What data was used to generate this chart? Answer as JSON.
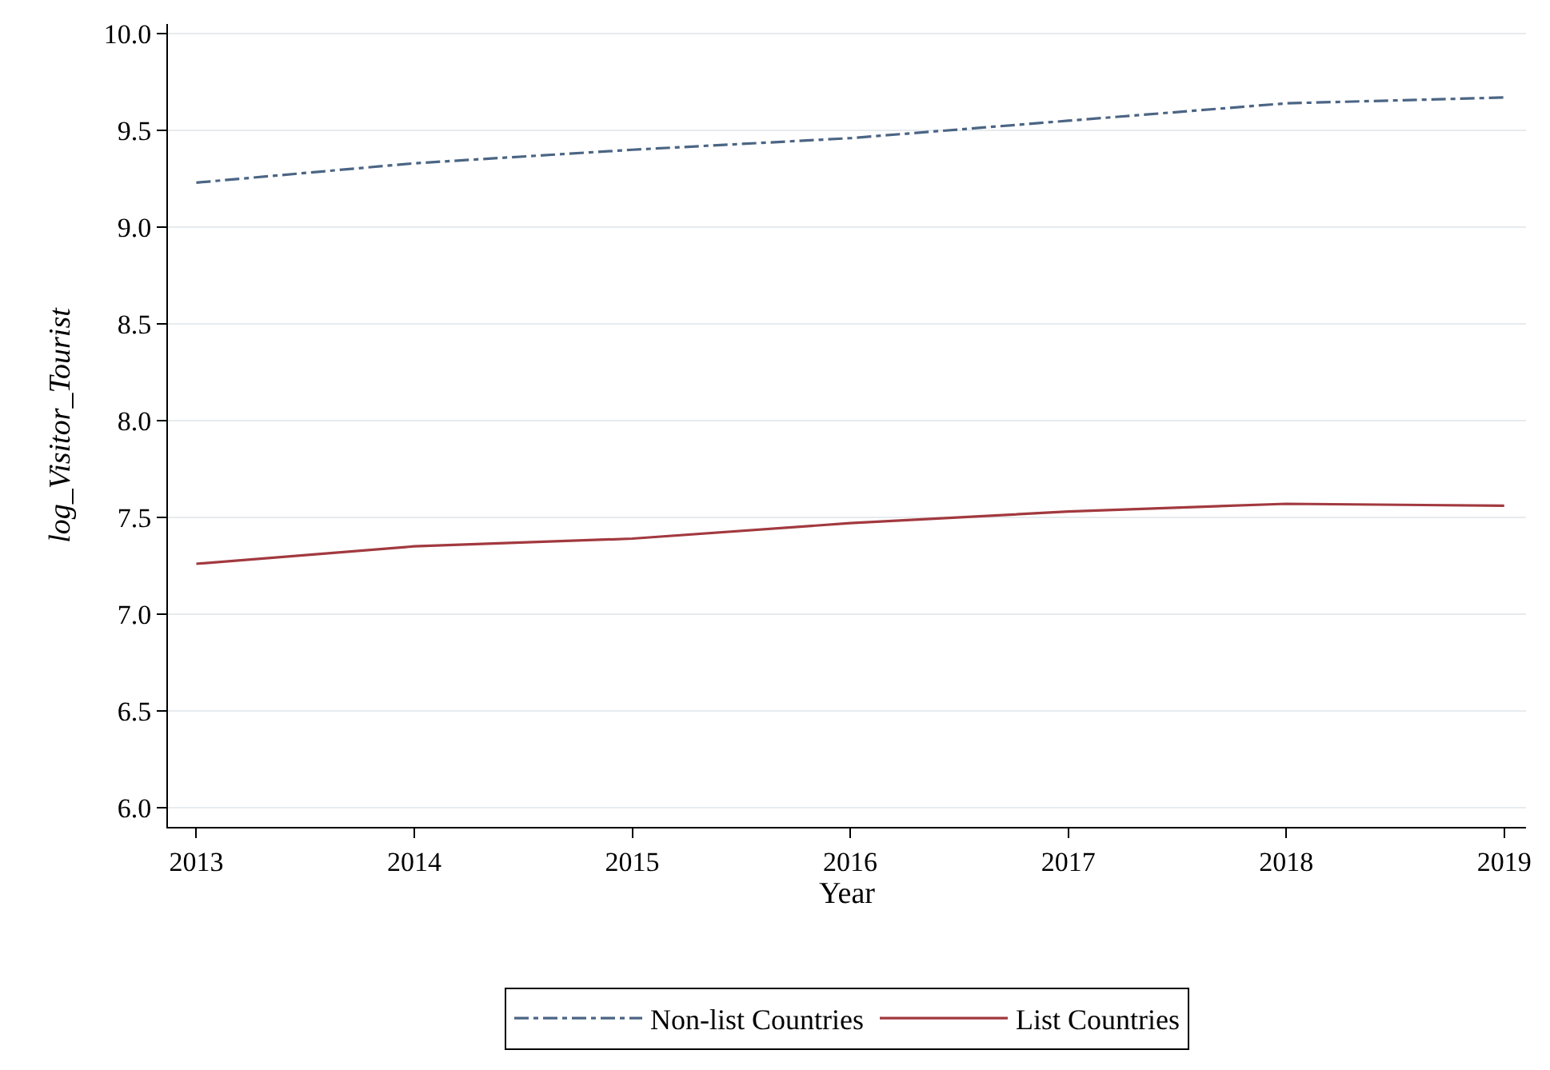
{
  "chart_data": {
    "type": "line",
    "xlabel": "Year",
    "ylabel": "log_Visitor_Tourist",
    "x": [
      2013,
      2014,
      2015,
      2016,
      2017,
      2018,
      2019
    ],
    "series": [
      {
        "name": "Non-list Countries",
        "color": "#4b6584",
        "line_style": "dashdot",
        "values": [
          9.23,
          9.33,
          9.4,
          9.46,
          9.55,
          9.64,
          9.67
        ]
      },
      {
        "name": "List Countries",
        "color": "#a2393f",
        "line_style": "solid",
        "values": [
          7.26,
          7.35,
          7.39,
          7.47,
          7.53,
          7.57,
          7.56
        ]
      }
    ],
    "xlim": [
      2012.87,
      2019.1
    ],
    "xticks": [
      2013,
      2014,
      2015,
      2016,
      2017,
      2018,
      2019
    ],
    "ylim": [
      5.9,
      10.05
    ],
    "yticks": [
      {
        "value": 6,
        "label": "6.0"
      },
      {
        "value": 6.5,
        "label": "6.5"
      },
      {
        "value": 7,
        "label": "7.0"
      },
      {
        "value": 7.5,
        "label": "7.5"
      },
      {
        "value": 8,
        "label": "8.0"
      },
      {
        "value": 8.5,
        "label": "8.5"
      },
      {
        "value": 9,
        "label": "9.0"
      },
      {
        "value": 9.5,
        "label": "9.5"
      },
      {
        "value": 10,
        "label": "10.0"
      }
    ],
    "grid": "y",
    "legend": "bottom",
    "marker": "none"
  }
}
